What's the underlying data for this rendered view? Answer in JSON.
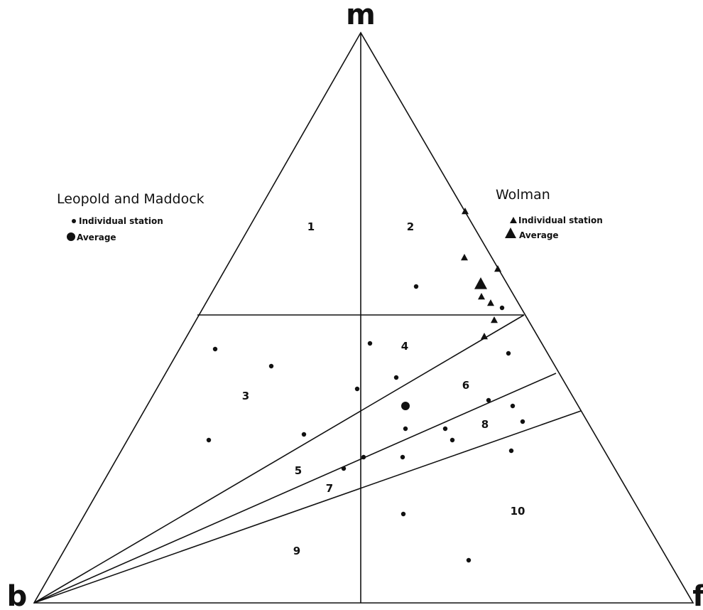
{
  "vertices": {
    "top": "m",
    "left": "b",
    "right": "f"
  },
  "regions": [
    "1",
    "2",
    "3",
    "4",
    "5",
    "6",
    "7",
    "8",
    "9",
    "10"
  ],
  "legends": {
    "left": {
      "title": "Leopold and Maddock",
      "individual": "Individual station",
      "average": "Average"
    },
    "right": {
      "title": "Wolman",
      "individual": "Individual station",
      "average": "Average"
    }
  },
  "marker_shapes": {
    "leopold_maddock": "circle",
    "wolman": "triangle"
  },
  "colors": {
    "ink": "#111111",
    "background": "#ffffff"
  }
}
